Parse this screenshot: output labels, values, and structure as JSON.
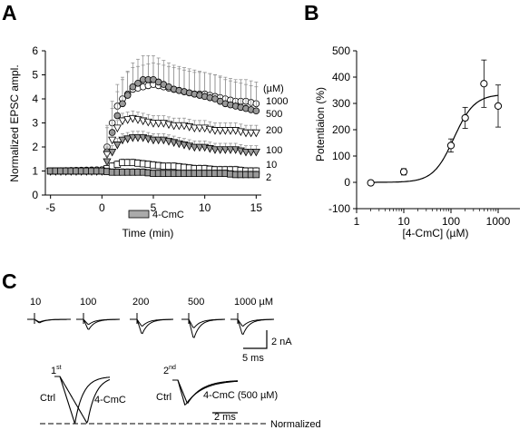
{
  "panels": {
    "a": "A",
    "b": "B",
    "c": "C"
  },
  "chart_data": [
    {
      "type": "scatter",
      "panel": "A",
      "xlabel": "Time (min)",
      "ylabel": "Normalized EPSC ampl.",
      "xlim": [
        -5.5,
        15.5
      ],
      "ylim": [
        0,
        6
      ],
      "xticks": [
        -5,
        0,
        5,
        10,
        15
      ],
      "yticks": [
        0,
        1,
        2,
        3,
        4,
        5,
        6
      ],
      "unit_label": "(µM)",
      "drug_bar_label": "4-CmC",
      "series": [
        {
          "name": "1000",
          "marker": "circle",
          "fill": "#ffffff",
          "err": 0.9,
          "pts": [
            [
              -5,
              1.0
            ],
            [
              0,
              1.05
            ],
            [
              0.5,
              2.0
            ],
            [
              1,
              3.0
            ],
            [
              1.5,
              3.7
            ],
            [
              2,
              4.0
            ],
            [
              3,
              4.4
            ],
            [
              4,
              4.5
            ],
            [
              5,
              4.6
            ],
            [
              6,
              4.5
            ],
            [
              7,
              4.4
            ],
            [
              8,
              4.3
            ],
            [
              9,
              4.2
            ],
            [
              10,
              4.2
            ],
            [
              11,
              4.1
            ],
            [
              12,
              4.0
            ],
            [
              13,
              3.9
            ],
            [
              14,
              3.9
            ],
            [
              15,
              3.8
            ]
          ]
        },
        {
          "name": "500",
          "marker": "circle",
          "fill": "#999999",
          "err": 1.0,
          "pts": [
            [
              -5,
              1.0
            ],
            [
              0,
              1.0
            ],
            [
              0.5,
              1.8
            ],
            [
              1,
              2.6
            ],
            [
              1.5,
              3.3
            ],
            [
              2,
              3.8
            ],
            [
              3,
              4.5
            ],
            [
              4,
              4.8
            ],
            [
              5,
              4.8
            ],
            [
              6,
              4.6
            ],
            [
              7,
              4.4
            ],
            [
              8,
              4.3
            ],
            [
              9,
              4.2
            ],
            [
              10,
              4.1
            ],
            [
              11,
              4.0
            ],
            [
              12,
              3.8
            ],
            [
              13,
              3.7
            ],
            [
              14,
              3.6
            ],
            [
              15,
              3.5
            ]
          ]
        },
        {
          "name": "200",
          "marker": "tri-down",
          "fill": "#ffffff",
          "err": 0.3,
          "pts": [
            [
              -5,
              1.0
            ],
            [
              0,
              1.0
            ],
            [
              0.5,
              1.7
            ],
            [
              1,
              2.3
            ],
            [
              1.5,
              2.8
            ],
            [
              2,
              3.1
            ],
            [
              3,
              3.2
            ],
            [
              4,
              3.1
            ],
            [
              5,
              3.0
            ],
            [
              6,
              3.0
            ],
            [
              7,
              2.9
            ],
            [
              8,
              2.9
            ],
            [
              9,
              2.8
            ],
            [
              10,
              2.8
            ],
            [
              11,
              2.7
            ],
            [
              12,
              2.7
            ],
            [
              13,
              2.7
            ],
            [
              14,
              2.6
            ],
            [
              15,
              2.6
            ]
          ]
        },
        {
          "name": "100",
          "marker": "tri-down",
          "fill": "#999999",
          "err": 0.25,
          "pts": [
            [
              -5,
              1.0
            ],
            [
              0,
              1.0
            ],
            [
              0.5,
              1.4
            ],
            [
              1,
              1.8
            ],
            [
              1.5,
              2.1
            ],
            [
              2,
              2.3
            ],
            [
              3,
              2.4
            ],
            [
              4,
              2.4
            ],
            [
              5,
              2.3
            ],
            [
              6,
              2.3
            ],
            [
              7,
              2.2
            ],
            [
              8,
              2.1
            ],
            [
              9,
              2.0
            ],
            [
              10,
              2.0
            ],
            [
              11,
              1.9
            ],
            [
              12,
              1.9
            ],
            [
              13,
              1.9
            ],
            [
              14,
              1.8
            ],
            [
              15,
              1.8
            ]
          ]
        },
        {
          "name": "10",
          "marker": "square",
          "fill": "#ffffff",
          "err": 0.15,
          "pts": [
            [
              -5,
              1.0
            ],
            [
              0,
              1.0
            ],
            [
              1,
              1.2
            ],
            [
              2,
              1.35
            ],
            [
              3,
              1.35
            ],
            [
              4,
              1.3
            ],
            [
              5,
              1.25
            ],
            [
              6,
              1.2
            ],
            [
              7,
              1.2
            ],
            [
              8,
              1.15
            ],
            [
              9,
              1.1
            ],
            [
              10,
              1.1
            ],
            [
              11,
              1.05
            ],
            [
              12,
              1.05
            ],
            [
              13,
              1.05
            ],
            [
              14,
              1.0
            ],
            [
              15,
              1.0
            ]
          ]
        },
        {
          "name": "2",
          "marker": "square",
          "fill": "#999999",
          "err": 0.15,
          "pts": [
            [
              -5,
              1.0
            ],
            [
              0,
              1.0
            ],
            [
              1,
              0.95
            ],
            [
              2,
              0.95
            ],
            [
              3,
              0.95
            ],
            [
              4,
              0.95
            ],
            [
              5,
              0.9
            ],
            [
              6,
              0.9
            ],
            [
              7,
              0.9
            ],
            [
              8,
              0.9
            ],
            [
              9,
              0.9
            ],
            [
              10,
              0.9
            ],
            [
              11,
              0.9
            ],
            [
              12,
              0.9
            ],
            [
              13,
              0.85
            ],
            [
              14,
              0.85
            ],
            [
              15,
              0.85
            ]
          ]
        }
      ]
    },
    {
      "type": "scatter",
      "panel": "B",
      "xlabel": "[4-CmC] (µM)",
      "ylabel": "Potentiaion (%)",
      "xscale": "log",
      "xlim": [
        1,
        1000
      ],
      "ylim": [
        -100,
        500
      ],
      "xticks": [
        1,
        10,
        100,
        1000
      ],
      "yticks": [
        -100,
        0,
        100,
        200,
        300,
        400,
        500
      ],
      "points": [
        {
          "x": 2,
          "y": -2,
          "err": 6
        },
        {
          "x": 10,
          "y": 40,
          "err": 12
        },
        {
          "x": 100,
          "y": 140,
          "err": 25
        },
        {
          "x": 200,
          "y": 245,
          "err": 40
        },
        {
          "x": 500,
          "y": 375,
          "err": 90
        },
        {
          "x": 1000,
          "y": 290,
          "err": 80
        }
      ],
      "fit": {
        "bottom": 0,
        "top": 335,
        "ec50": 115,
        "hill": 2
      }
    }
  ],
  "traces": {
    "conc_labels": [
      "10",
      "100",
      "200",
      "500",
      "1000 µM"
    ],
    "scale_y": "2 nA",
    "scale_x": "5 ms",
    "first_label": "1",
    "first_sup": "st",
    "second_label": "2",
    "second_sup": "nd",
    "ctrl_label": "Ctrl",
    "drug_label_1": "4-CmC",
    "drug_label_2": "4-CmC (500 µM)",
    "scale_x2": "2 ms",
    "normalized_label": "Normalized"
  }
}
